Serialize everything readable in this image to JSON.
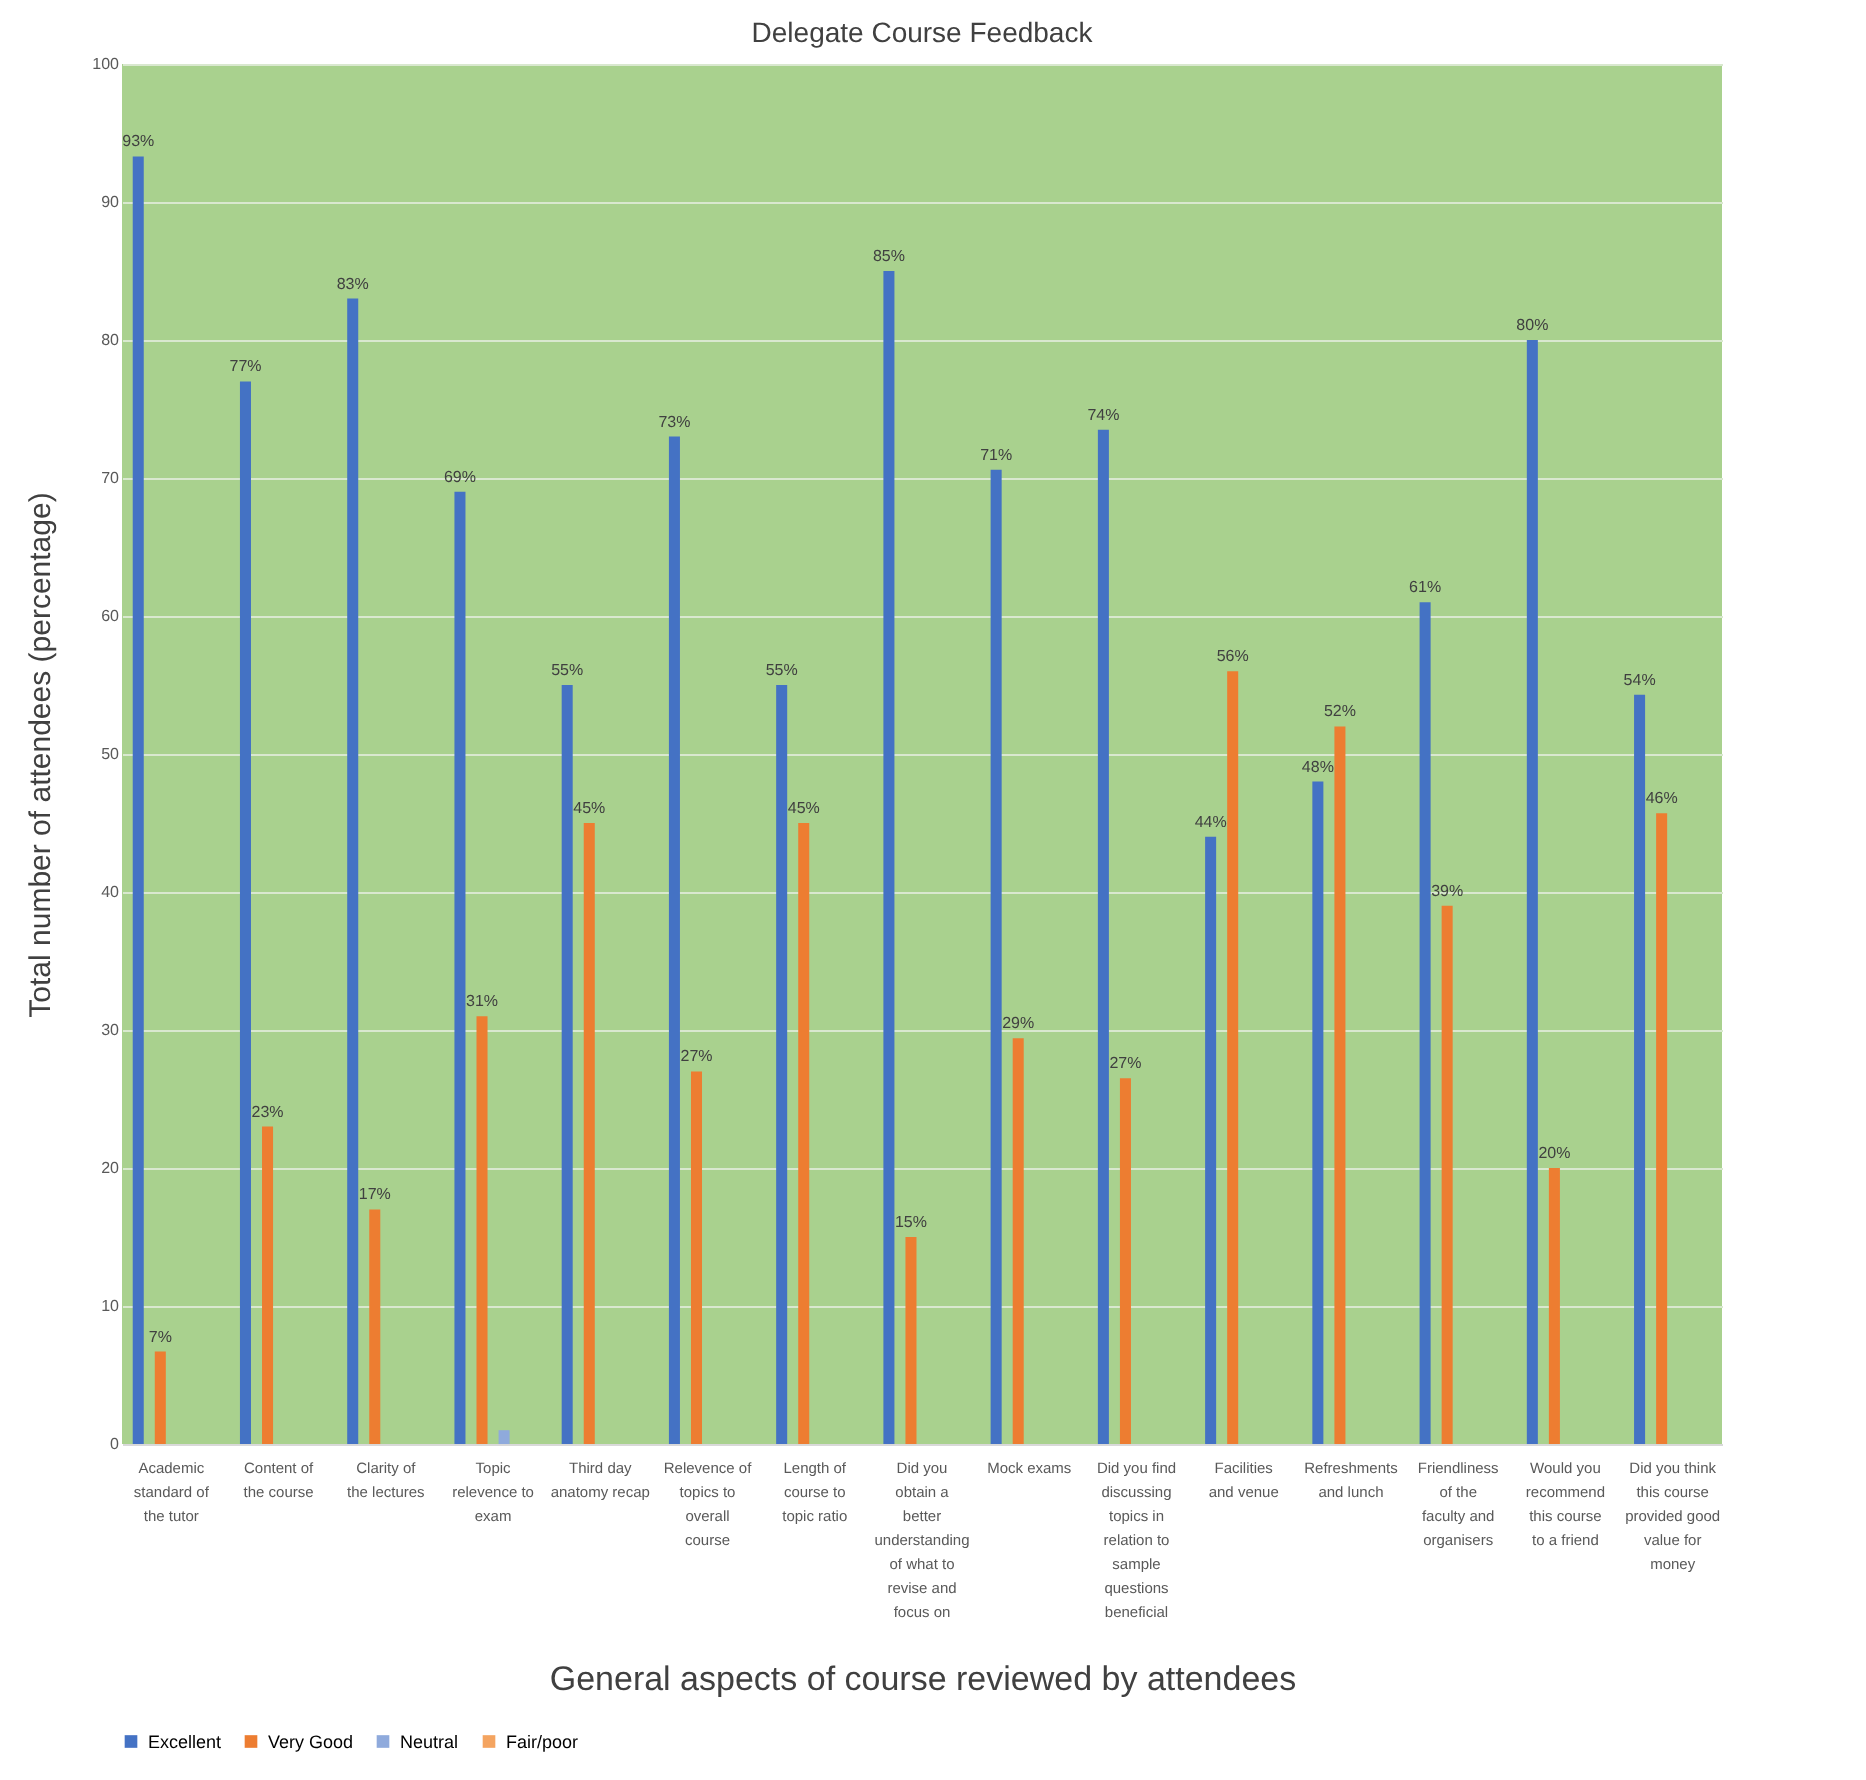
{
  "chart_data": {
    "type": "bar",
    "title": "Delegate Course Feedback",
    "xlabel": "General aspects of course reviewed by attendees",
    "ylabel": "Total number of attendees (percentage)",
    "categories": [
      "Academic standard of the tutor",
      "Content of the course",
      "Clarity of the lectures",
      "Topic relevence to exam",
      "Third day anatomy recap",
      "Relevence of topics to overall course",
      "Length of course to topic ratio",
      "Did you obtain a better understanding of what to revise and focus on",
      "Mock exams",
      "Did you find discussing topics in relation to sample questions beneficial",
      "Facilities and venue",
      "Refreshments and lunch",
      "Friendliness of the faculty and organisers",
      "Would you recommend this course to a friend",
      "Did you think this course provided good value for money"
    ],
    "series": [
      {
        "name": "Excellent",
        "color": "#4472c4",
        "values": [
          93.3,
          77,
          83,
          69,
          55,
          73,
          55,
          85,
          70.6,
          73.5,
          44,
          48,
          61,
          80,
          54.3
        ],
        "value_labels": [
          "93%",
          "77%",
          "83%",
          "69%",
          "55%",
          "73%",
          "55%",
          "85%",
          "71%",
          "74%",
          "44%",
          "48%",
          "61%",
          "80%",
          "54%"
        ]
      },
      {
        "name": "Very Good",
        "color": "#ed7d31",
        "values": [
          6.7,
          23,
          17,
          31,
          45,
          27,
          45,
          15,
          29.4,
          26.5,
          56,
          52,
          39,
          20,
          45.7
        ],
        "value_labels": [
          "7%",
          "23%",
          "17%",
          "31%",
          "45%",
          "27%",
          "45%",
          "15%",
          "29%",
          "27%",
          "56%",
          "52%",
          "39%",
          "20%",
          "46%"
        ]
      },
      {
        "name": "Neutral",
        "color": "#8faadc",
        "values": [
          null,
          null,
          null,
          1,
          null,
          null,
          null,
          null,
          null,
          null,
          null,
          null,
          null,
          null,
          null
        ]
      },
      {
        "name": "Fair/poor",
        "color": "#f4a460",
        "values": [
          null,
          null,
          null,
          null,
          null,
          null,
          null,
          null,
          null,
          null,
          null,
          null,
          null,
          null,
          null
        ]
      }
    ],
    "ylim": [
      0,
      100
    ],
    "yticks": [
      0,
      10,
      20,
      30,
      40,
      50,
      60,
      70,
      80,
      90,
      100
    ],
    "grid": "y",
    "legend": "bottom"
  }
}
